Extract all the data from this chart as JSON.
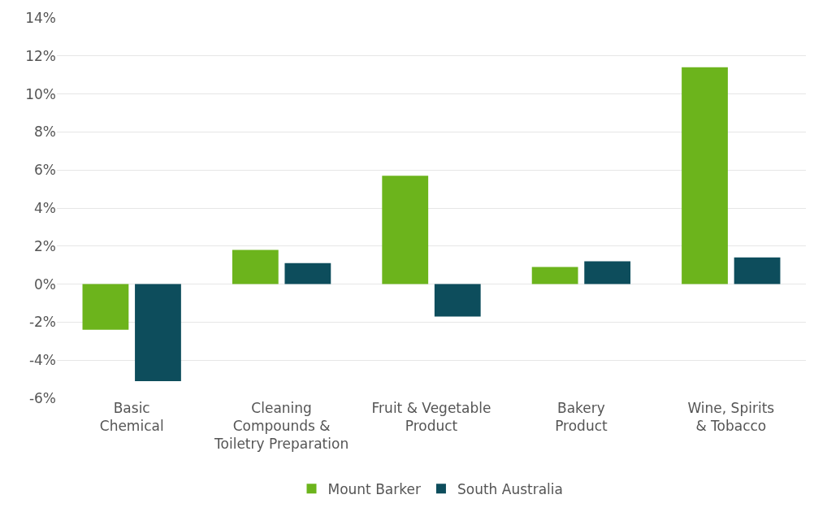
{
  "chart_data": {
    "type": "bar",
    "categories": [
      "Basic\nChemical",
      "Cleaning\nCompounds &\nToiletry Preparation",
      "Fruit & Vegetable\nProduct",
      "Bakery\nProduct",
      "Wine, Spirits\n& Tobacco"
    ],
    "series": [
      {
        "name": "Mount Barker",
        "color": "#6cb41c",
        "values": [
          -2.4,
          1.8,
          5.7,
          0.9,
          11.4
        ]
      },
      {
        "name": "South Australia",
        "color": "#0d4d5c",
        "values": [
          -5.1,
          1.1,
          -1.7,
          1.2,
          1.4
        ]
      }
    ],
    "ylim": [
      -6,
      14
    ],
    "yticks": [
      {
        "value": -6,
        "label": "-6%"
      },
      {
        "value": -4,
        "label": "-4%"
      },
      {
        "value": -2,
        "label": "-2%"
      },
      {
        "value": 0,
        "label": "0%"
      },
      {
        "value": 2,
        "label": "2%"
      },
      {
        "value": 4,
        "label": "4%"
      },
      {
        "value": 6,
        "label": "6%"
      },
      {
        "value": 8,
        "label": "8%"
      },
      {
        "value": 10,
        "label": "10%"
      },
      {
        "value": 12,
        "label": "12%"
      },
      {
        "value": 14,
        "label": "14%"
      }
    ],
    "grid": "y",
    "legend": "bottom"
  }
}
